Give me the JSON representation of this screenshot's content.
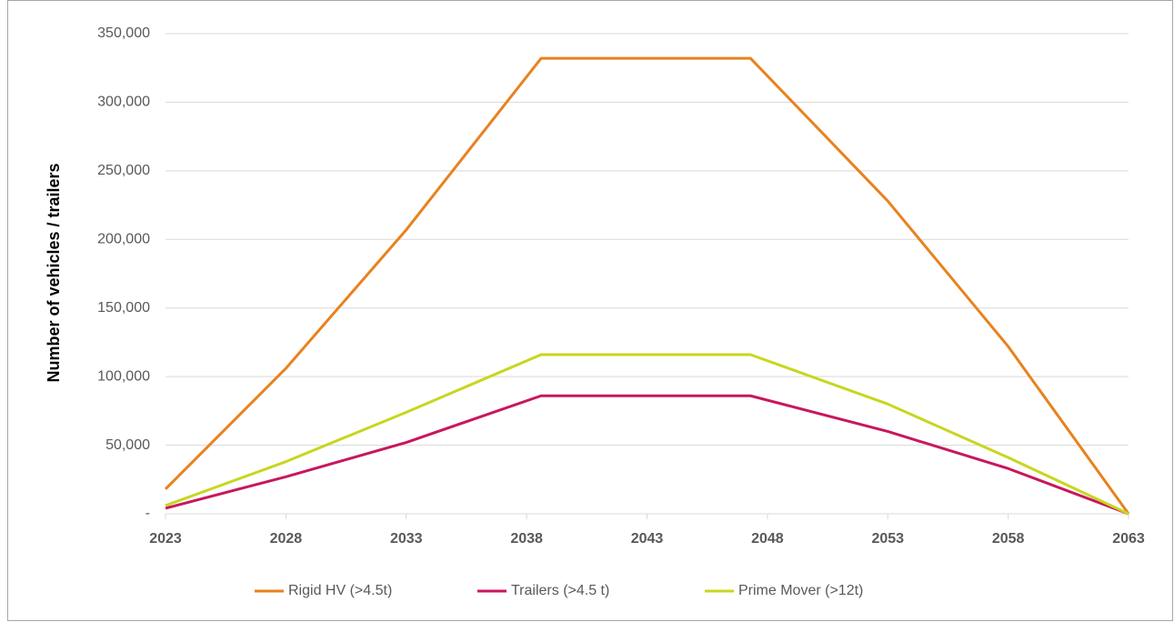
{
  "chart_data": {
    "type": "line",
    "ylabel": "Number of vehicles / trailers",
    "x": [
      2023,
      2028,
      2033,
      2038.6,
      2047.3,
      2053,
      2058,
      2063
    ],
    "series": [
      {
        "name": "Rigid HV (>4.5t)",
        "color": "#e8821e",
        "values": [
          18000,
          106000,
          207000,
          332000,
          332000,
          228000,
          122000,
          0
        ]
      },
      {
        "name": "Trailers (>4.5 t)",
        "color": "#c8175e",
        "values": [
          4000,
          27000,
          52000,
          86000,
          86000,
          60000,
          33000,
          0
        ]
      },
      {
        "name": "Prime Mover (>12t)",
        "color": "#c8d61e",
        "values": [
          6000,
          38000,
          74000,
          116000,
          116000,
          80000,
          41000,
          0
        ]
      }
    ],
    "xlim": [
      2023,
      2063
    ],
    "xticks": [
      2023,
      2028,
      2033,
      2038,
      2043,
      2048,
      2053,
      2058,
      2063
    ],
    "ylim": [
      0,
      350000
    ],
    "yticks": [
      {
        "value": 0,
        "label": "-"
      },
      {
        "value": 50000,
        "label": "50,000"
      },
      {
        "value": 100000,
        "label": "100,000"
      },
      {
        "value": 150000,
        "label": "150,000"
      },
      {
        "value": 200000,
        "label": "200,000"
      },
      {
        "value": 250000,
        "label": "250,000"
      },
      {
        "value": 300000,
        "label": "300,000"
      },
      {
        "value": 350000,
        "label": "350,000"
      }
    ],
    "grid": true,
    "legend": "bottom"
  }
}
